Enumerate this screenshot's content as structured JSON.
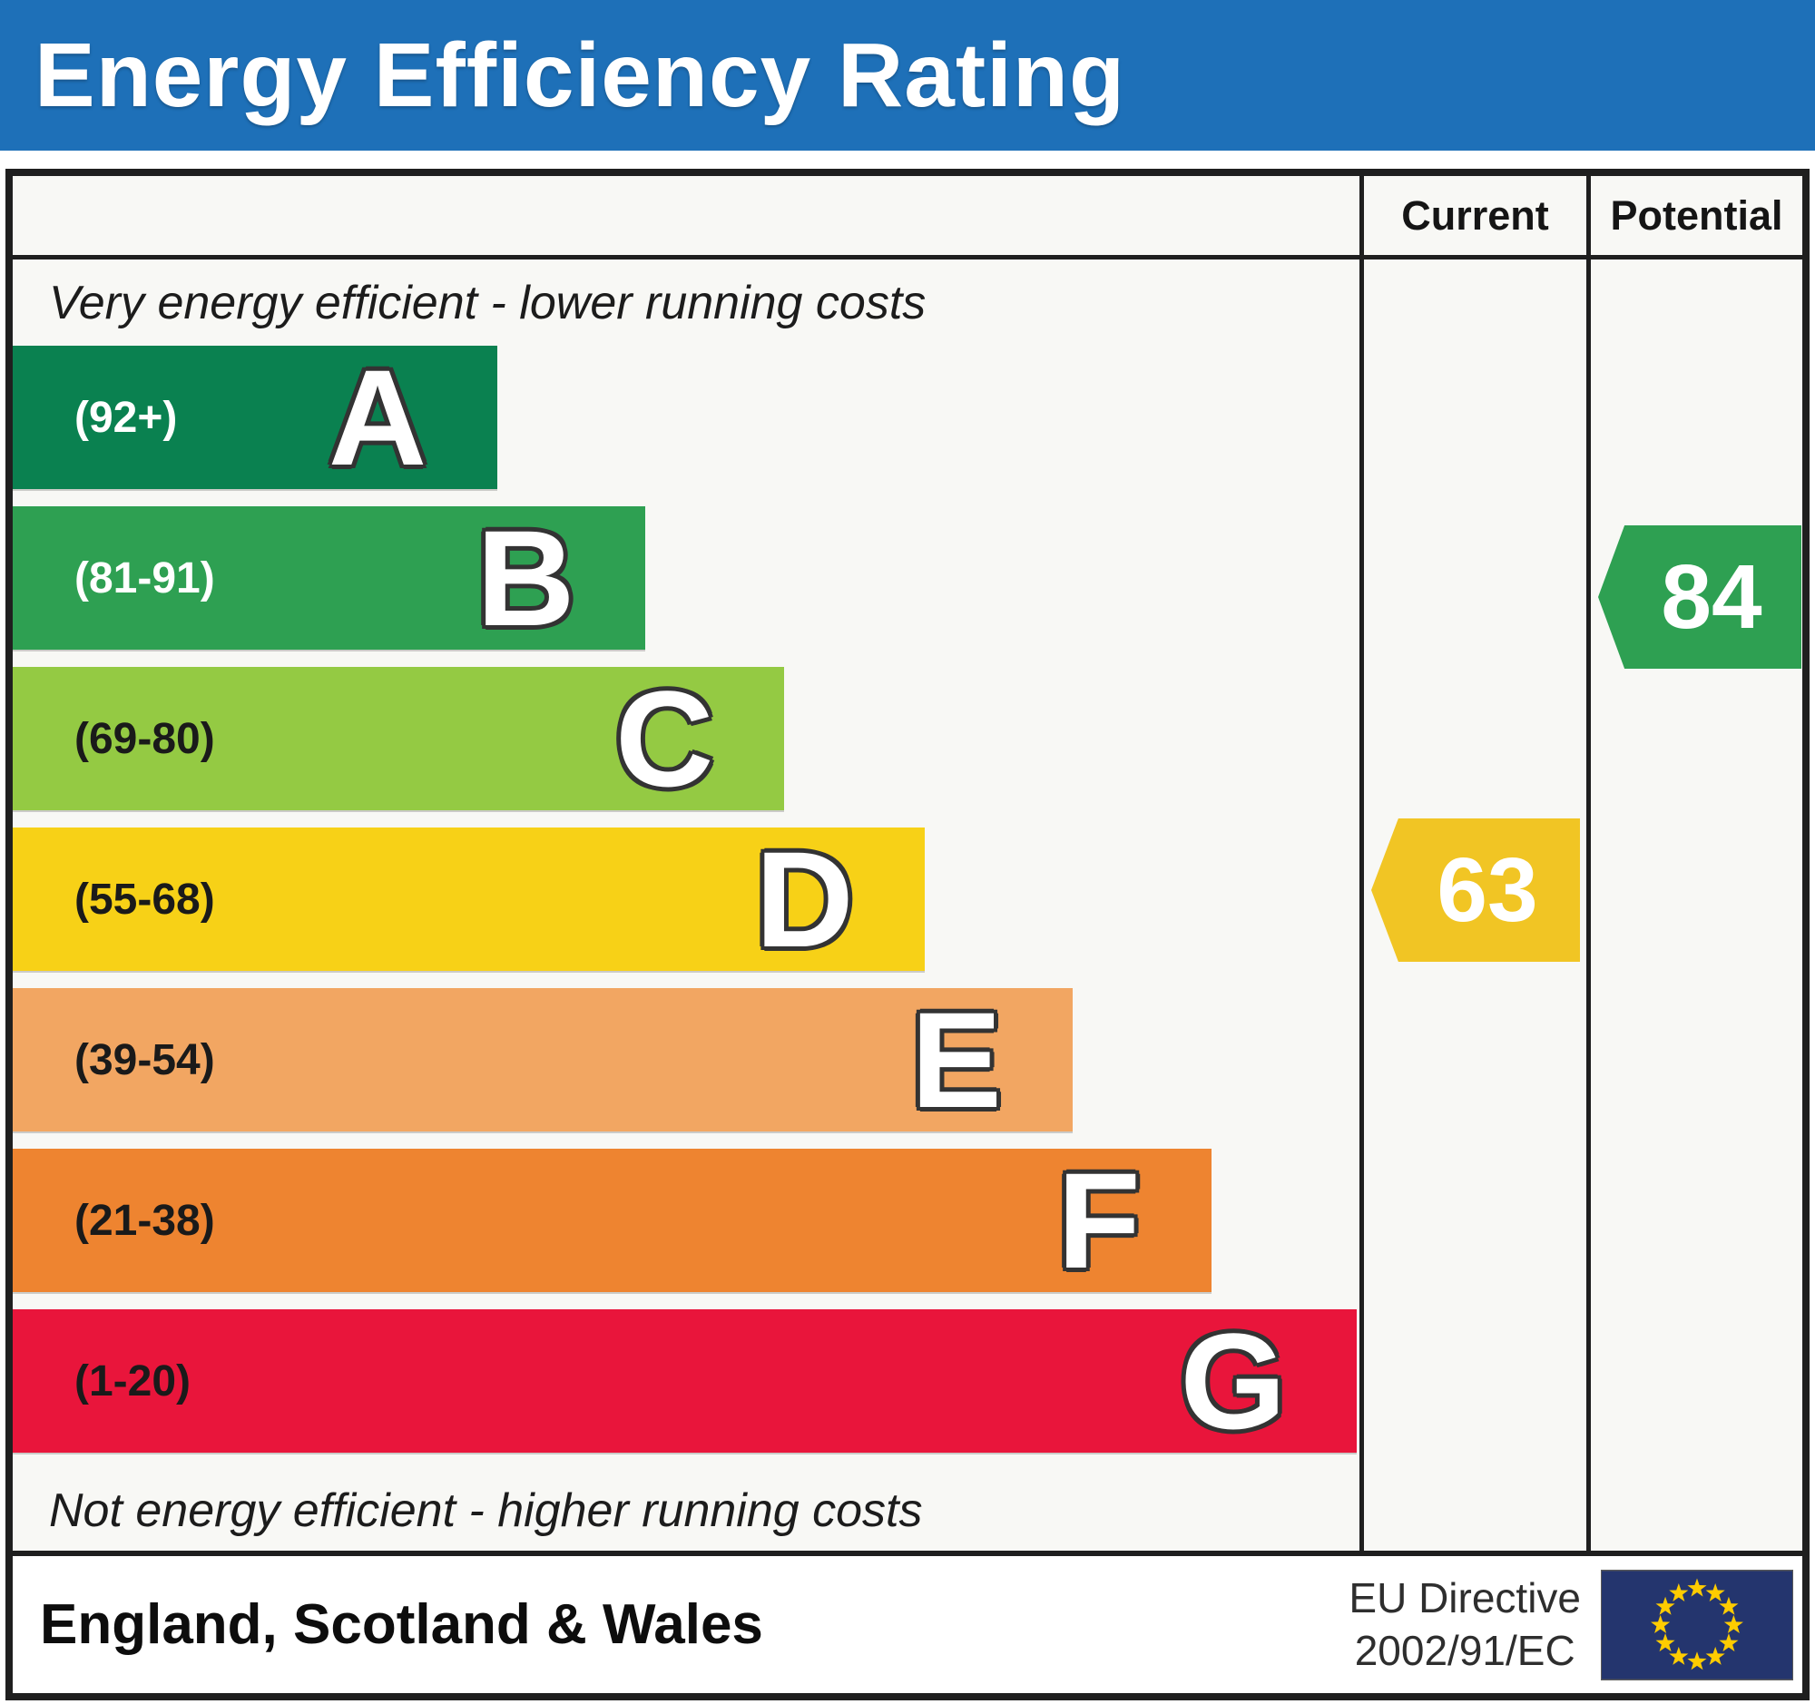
{
  "title_bar": {
    "title": "Energy Efficiency Rating",
    "bg_color": "#1e70b8",
    "text_color": "#ffffff"
  },
  "table": {
    "current_label": "Current",
    "potential_label": "Potential",
    "top_note": "Very energy efficient - lower running costs",
    "bottom_note": "Not energy efficient - higher running costs"
  },
  "chart_data": {
    "type": "bar",
    "title": "Energy Efficiency Rating",
    "categories": [
      "A",
      "B",
      "C",
      "D",
      "E",
      "F",
      "G"
    ],
    "bands": [
      {
        "letter": "A",
        "range_label": "(92+)",
        "range": [
          92,
          100
        ],
        "color": "#0a8150",
        "width_pct": 36.0,
        "label_color": "#ffffff"
      },
      {
        "letter": "B",
        "range_label": "(81-91)",
        "range": [
          81,
          91
        ],
        "color": "#2ea052",
        "width_pct": 47.0,
        "label_color": "#ffffff"
      },
      {
        "letter": "C",
        "range_label": "(69-80)",
        "range": [
          69,
          80
        ],
        "color": "#94ca43",
        "width_pct": 57.3,
        "label_color": "#1a1a1a"
      },
      {
        "letter": "D",
        "range_label": "(55-68)",
        "range": [
          55,
          68
        ],
        "color": "#f7d117",
        "width_pct": 67.7,
        "label_color": "#1a1a1a"
      },
      {
        "letter": "E",
        "range_label": "(39-54)",
        "range": [
          39,
          54
        ],
        "color": "#f2a662",
        "width_pct": 78.7,
        "label_color": "#1a1a1a"
      },
      {
        "letter": "F",
        "range_label": "(21-38)",
        "range": [
          21,
          38
        ],
        "color": "#ee8430",
        "width_pct": 89.0,
        "label_color": "#1a1a1a"
      },
      {
        "letter": "G",
        "range_label": "(1-20)",
        "range": [
          1,
          20
        ],
        "color": "#e9153b",
        "width_pct": 99.8,
        "label_color": "#1a1a1a"
      }
    ],
    "current": {
      "value": "63",
      "band": "D",
      "color": "#f1c524"
    },
    "potential": {
      "value": "84",
      "band": "B",
      "color": "#2ea052"
    },
    "legend_position": "right-columns",
    "grid": false
  },
  "footer": {
    "region": "England, Scotland & Wales",
    "directive_line1": "EU Directive",
    "directive_line2": "2002/91/EC",
    "flag_colors": {
      "field": "#24356e",
      "stars": "#ffcc00"
    }
  }
}
